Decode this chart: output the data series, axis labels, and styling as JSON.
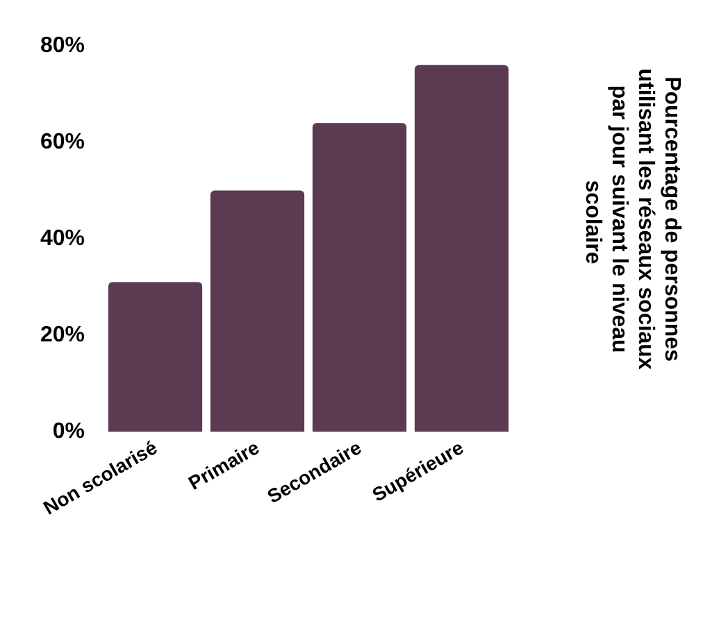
{
  "chart_data": {
    "type": "bar",
    "ylabel": "Pourcentage de personnes utilisant les réseaux sociaux par jour suivant le niveau scolaire",
    "categories": [
      "Non scolarisé",
      "Primaire",
      "Secondaire",
      "Supérieure"
    ],
    "values": [
      31,
      50,
      64,
      76
    ],
    "color": "#5b3b51",
    "ylim": [
      0,
      80
    ],
    "yticks": [
      {
        "value": 0,
        "label": "0%"
      },
      {
        "value": 20,
        "label": "20%"
      },
      {
        "value": 40,
        "label": "40%"
      },
      {
        "value": 60,
        "label": "60%"
      },
      {
        "value": 80,
        "label": "80%"
      }
    ],
    "grid": false
  }
}
